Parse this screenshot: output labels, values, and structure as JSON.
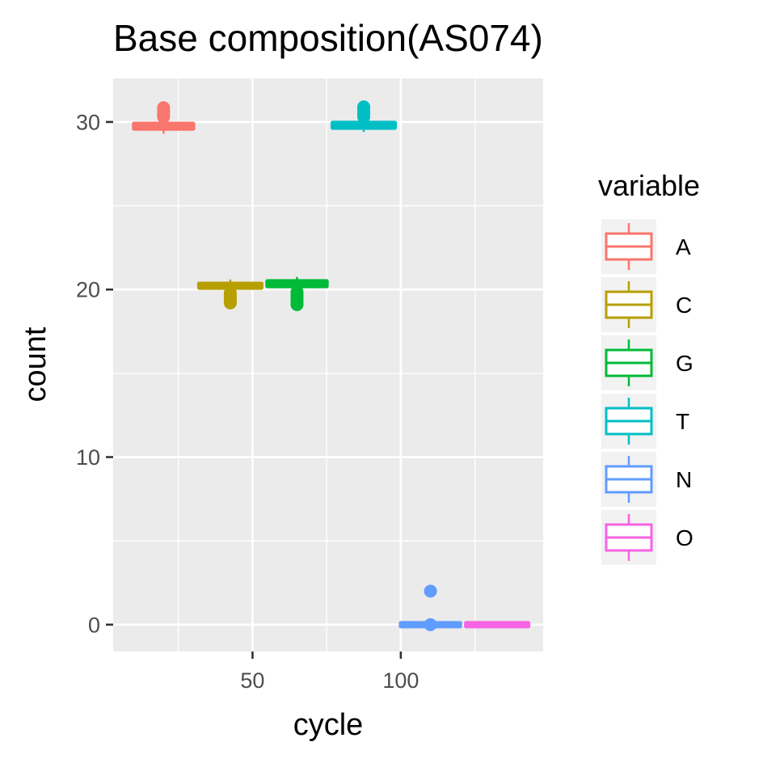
{
  "chart_data": {
    "type": "boxplot",
    "title": "Base composition(AS074)",
    "xlabel": "cycle",
    "ylabel": "count",
    "xlim": [
      3,
      148
    ],
    "ylim": [
      -1.6,
      32.6
    ],
    "x_ticks": [
      50,
      100
    ],
    "x_minor": [
      25,
      75,
      125
    ],
    "y_ticks": [
      0,
      10,
      20,
      30
    ],
    "y_minor": [
      5,
      15,
      25
    ],
    "grid": true,
    "legend": {
      "title": "variable",
      "position": "right",
      "entries": [
        "A",
        "C",
        "G",
        "T",
        "N",
        "O"
      ]
    },
    "series": [
      {
        "name": "A",
        "color": "#F8766D",
        "x_center": 20,
        "x_range": [
          10,
          30
        ],
        "box": {
          "q1": 29.6,
          "median": 29.8,
          "q3": 29.9,
          "whisker_low": 29.3,
          "whisker_high": 30.2
        },
        "outliers": [
          30.3,
          30.45,
          30.6,
          30.75,
          30.85
        ]
      },
      {
        "name": "C",
        "color": "#B79F00",
        "x_center": 42.5,
        "x_range": [
          32,
          53
        ],
        "box": {
          "q1": 20.1,
          "median": 20.25,
          "q3": 20.35,
          "whisker_low": 19.95,
          "whisker_high": 20.6
        },
        "outliers": [
          19.2,
          19.35,
          19.5,
          19.65,
          19.8
        ]
      },
      {
        "name": "G",
        "color": "#00BA38",
        "x_center": 65,
        "x_range": [
          55,
          75
        ],
        "box": {
          "q1": 20.2,
          "median": 20.35,
          "q3": 20.5,
          "whisker_low": 20.0,
          "whisker_high": 20.75
        },
        "outliers": [
          19.1,
          19.25,
          19.4,
          19.55,
          19.7,
          19.85
        ]
      },
      {
        "name": "T",
        "color": "#00BFC4",
        "x_center": 87.5,
        "x_range": [
          77,
          98
        ],
        "box": {
          "q1": 29.65,
          "median": 29.8,
          "q3": 29.95,
          "whisker_low": 29.4,
          "whisker_high": 30.1
        },
        "outliers": [
          30.3,
          30.45,
          30.6,
          30.75,
          30.9
        ]
      },
      {
        "name": "N",
        "color": "#619CFF",
        "x_center": 110,
        "x_range": [
          100,
          120
        ],
        "box": {
          "q1": 0,
          "median": 0,
          "q3": 0,
          "whisker_low": 0,
          "whisker_high": 0
        },
        "outliers": [
          2.0,
          0.0
        ]
      },
      {
        "name": "O",
        "color": "#F564E3",
        "x_center": 132.5,
        "x_range": [
          122,
          143
        ],
        "box": {
          "q1": 0,
          "median": 0,
          "q3": 0,
          "whisker_low": 0,
          "whisker_high": 0
        },
        "outliers": []
      }
    ]
  }
}
